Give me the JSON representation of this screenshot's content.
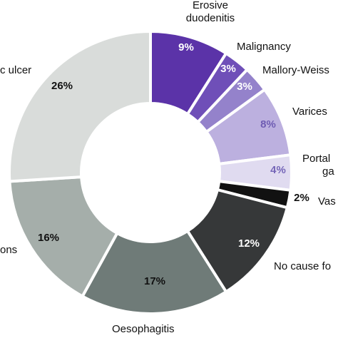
{
  "chart_data": {
    "type": "pie",
    "title": "",
    "start_angle_deg": 0,
    "direction": "clockwise",
    "slices": [
      {
        "label": "Erosive\nduodenitis",
        "value": 9,
        "pct_label": "9%",
        "color": "#5b33a8",
        "text_color": "#ffffff"
      },
      {
        "label": "Malignancy",
        "value": 3,
        "pct_label": "3%",
        "color": "#6f4fb8",
        "text_color": "#ffffff"
      },
      {
        "label": "Mallory-Weiss",
        "value": 3,
        "pct_label": "3%",
        "color": "#9482cb",
        "text_color": "#ffffff"
      },
      {
        "label": "Varices",
        "value": 8,
        "pct_label": "8%",
        "color": "#bcb0df",
        "text_color": "#6f5cb3"
      },
      {
        "label": "Portal\nga",
        "value": 4,
        "pct_label": "4%",
        "color": "#e0dbf0",
        "text_color": "#7566b8"
      },
      {
        "label": "Vas",
        "value": 2,
        "pct_label": "2%",
        "color": "#111111",
        "text_color": "#111111"
      },
      {
        "label": "No cause fo",
        "value": 12,
        "pct_label": "12%",
        "color": "#363839",
        "text_color": "#ffffff"
      },
      {
        "label": "Oesophagitis",
        "value": 17,
        "pct_label": "17%",
        "color": "#6f7b78",
        "text_color": "#111111"
      },
      {
        "label": "ons",
        "value": 16,
        "pct_label": "16%",
        "color": "#a5aeaa",
        "text_color": "#111111"
      },
      {
        "label": "c ulcer",
        "value": 26,
        "pct_label": "26%",
        "color": "#d9dcda",
        "text_color": "#111111"
      }
    ]
  }
}
